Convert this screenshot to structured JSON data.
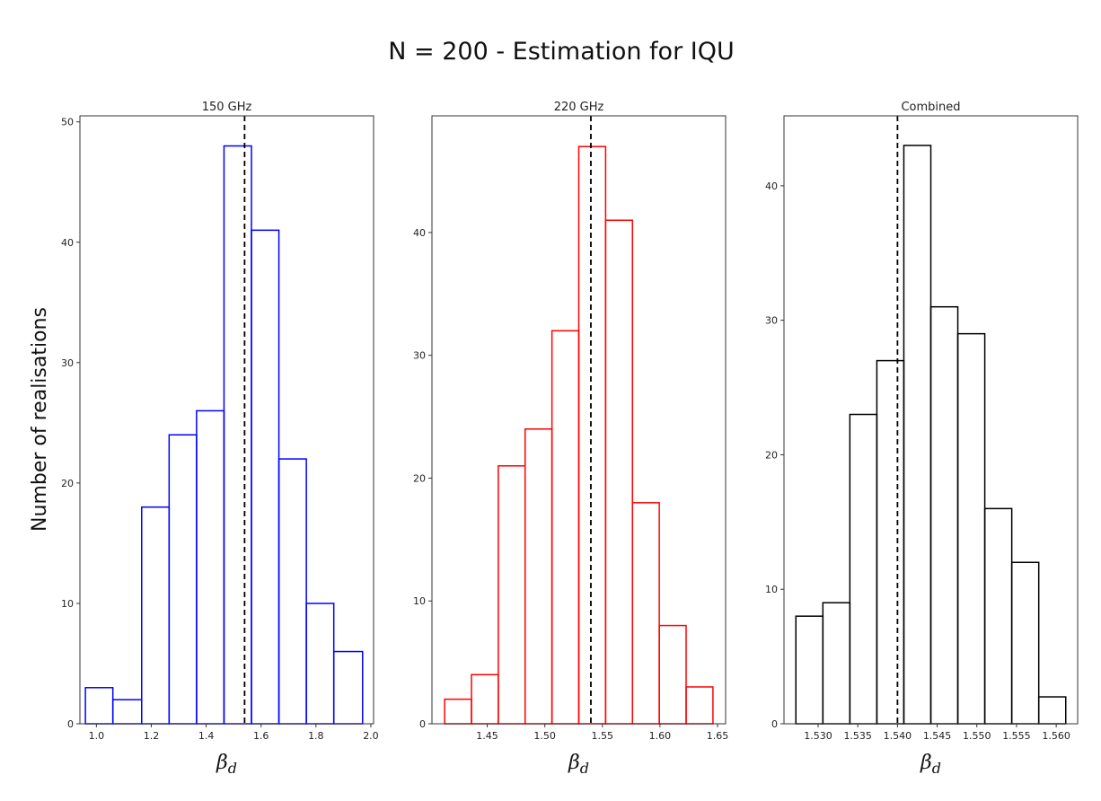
{
  "figure": {
    "title": "N = 200 - Estimation for IQU",
    "ylabel": "Number of realisations"
  },
  "chart_data": [
    {
      "type": "histogram",
      "title": "150 GHz",
      "xlabel": "β",
      "xlabel_sub": "d",
      "color": "#0000ff",
      "bin_edges": [
        0.96,
        1.06,
        1.165,
        1.265,
        1.365,
        1.465,
        1.565,
        1.665,
        1.765,
        1.865,
        1.97
      ],
      "counts": [
        3,
        2,
        18,
        24,
        26,
        48,
        41,
        22,
        10,
        6
      ],
      "true_value": 1.54,
      "xlim": [
        0.94,
        2.01
      ],
      "ylim": [
        0,
        50.5
      ],
      "xticks": [
        1.0,
        1.2,
        1.4,
        1.6,
        1.8,
        2.0
      ],
      "xtick_labels": [
        "1.0",
        "1.2",
        "1.4",
        "1.6",
        "1.8",
        "2.0"
      ],
      "yticks": [
        0,
        10,
        20,
        30,
        40,
        50
      ],
      "ytick_labels": [
        "0",
        "10",
        "20",
        "30",
        "40",
        "50"
      ]
    },
    {
      "type": "histogram",
      "title": "220 GHz",
      "xlabel": "β",
      "xlabel_sub": "d",
      "color": "#ff0000",
      "bin_edges": [
        1.413,
        1.4363,
        1.4596,
        1.4829,
        1.5062,
        1.5295,
        1.5528,
        1.5761,
        1.5994,
        1.6227,
        1.646
      ],
      "counts": [
        2,
        4,
        21,
        24,
        32,
        47,
        41,
        18,
        8,
        3
      ],
      "true_value": 1.54,
      "xlim": [
        1.402,
        1.657
      ],
      "ylim": [
        0,
        49.5
      ],
      "xticks": [
        1.45,
        1.5,
        1.55,
        1.6,
        1.65
      ],
      "xtick_labels": [
        "1.45",
        "1.50",
        "1.55",
        "1.60",
        "1.65"
      ],
      "yticks": [
        0,
        10,
        20,
        30,
        40
      ],
      "ytick_labels": [
        "0",
        "10",
        "20",
        "30",
        "40"
      ]
    },
    {
      "type": "histogram",
      "title": "Combined",
      "xlabel": "β",
      "xlabel_sub": "d",
      "color": "#000000",
      "bin_edges": [
        1.5272,
        1.5306,
        1.534,
        1.5374,
        1.5408,
        1.5442,
        1.5476,
        1.551,
        1.5544,
        1.5578,
        1.5612
      ],
      "counts": [
        8,
        9,
        23,
        27,
        43,
        31,
        29,
        16,
        12,
        2
      ],
      "true_value": 1.54,
      "xlim": [
        1.5257,
        1.5627
      ],
      "ylim": [
        0,
        45.2
      ],
      "xticks": [
        1.53,
        1.535,
        1.54,
        1.545,
        1.55,
        1.555,
        1.56
      ],
      "xtick_labels": [
        "1.530",
        "1.535",
        "1.540",
        "1.545",
        "1.550",
        "1.555",
        "1.560"
      ],
      "yticks": [
        0,
        10,
        20,
        30,
        40
      ],
      "ytick_labels": [
        "0",
        "10",
        "20",
        "30",
        "40"
      ]
    }
  ]
}
